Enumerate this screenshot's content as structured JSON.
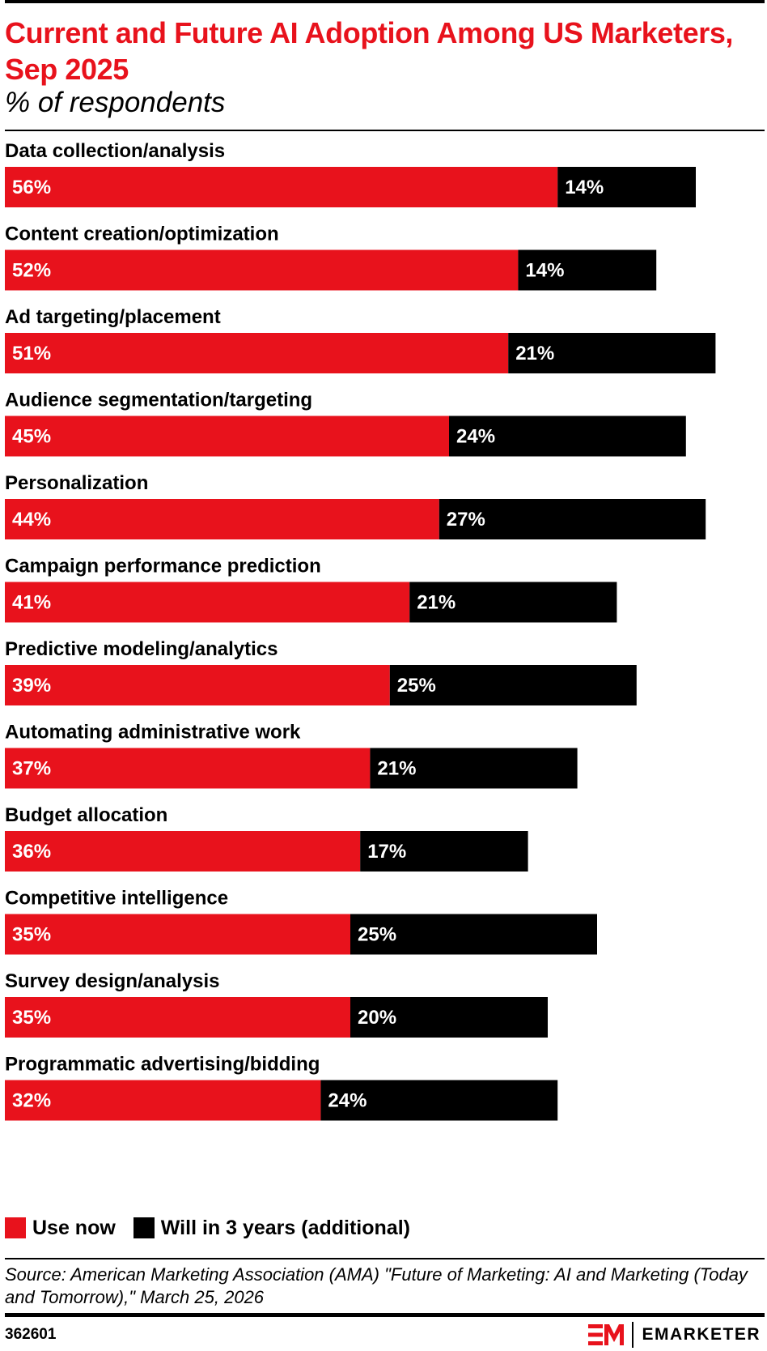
{
  "header": {
    "title": "Current and Future AI Adoption Among US Marketers, Sep 2025",
    "subtitle": "% of respondents"
  },
  "chart_data": {
    "type": "bar",
    "orientation": "horizontal",
    "stacked": true,
    "title": "Current and Future AI Adoption Among US Marketers, Sep 2025",
    "subtitle": "% of respondents",
    "categories": [
      "Data collection/analysis",
      "Content creation/optimization",
      "Ad targeting/placement",
      "Audience segmentation/targeting",
      "Personalization",
      "Campaign performance prediction",
      "Predictive modeling/analytics",
      "Automating administrative work",
      "Budget allocation",
      "Competitive intelligence",
      "Survey design/analysis",
      "Programmatic advertising/bidding"
    ],
    "series": [
      {
        "name": "Use now",
        "color": "#e8121c",
        "values": [
          56,
          52,
          51,
          45,
          44,
          41,
          39,
          37,
          36,
          35,
          35,
          32
        ]
      },
      {
        "name": "Will in 3 years (additional)",
        "color": "#000000",
        "values": [
          14,
          14,
          21,
          24,
          27,
          21,
          25,
          21,
          17,
          25,
          20,
          24
        ]
      }
    ],
    "value_suffix": "%",
    "legend_position": "bottom-left",
    "grid": false,
    "xlim": [
      0,
      72
    ]
  },
  "legend": {
    "items": [
      {
        "label": "Use now",
        "color": "#e8121c"
      },
      {
        "label": "Will in 3 years (additional)",
        "color": "#000000"
      }
    ]
  },
  "footer": {
    "source": "Source: American Marketing Association (AMA) \"Future of Marketing: AI and Marketing (Today and Tomorrow),\" March 25, 2026",
    "chart_id": "362601",
    "brand": "EMARKETER",
    "brand_color": "#e8121c"
  }
}
